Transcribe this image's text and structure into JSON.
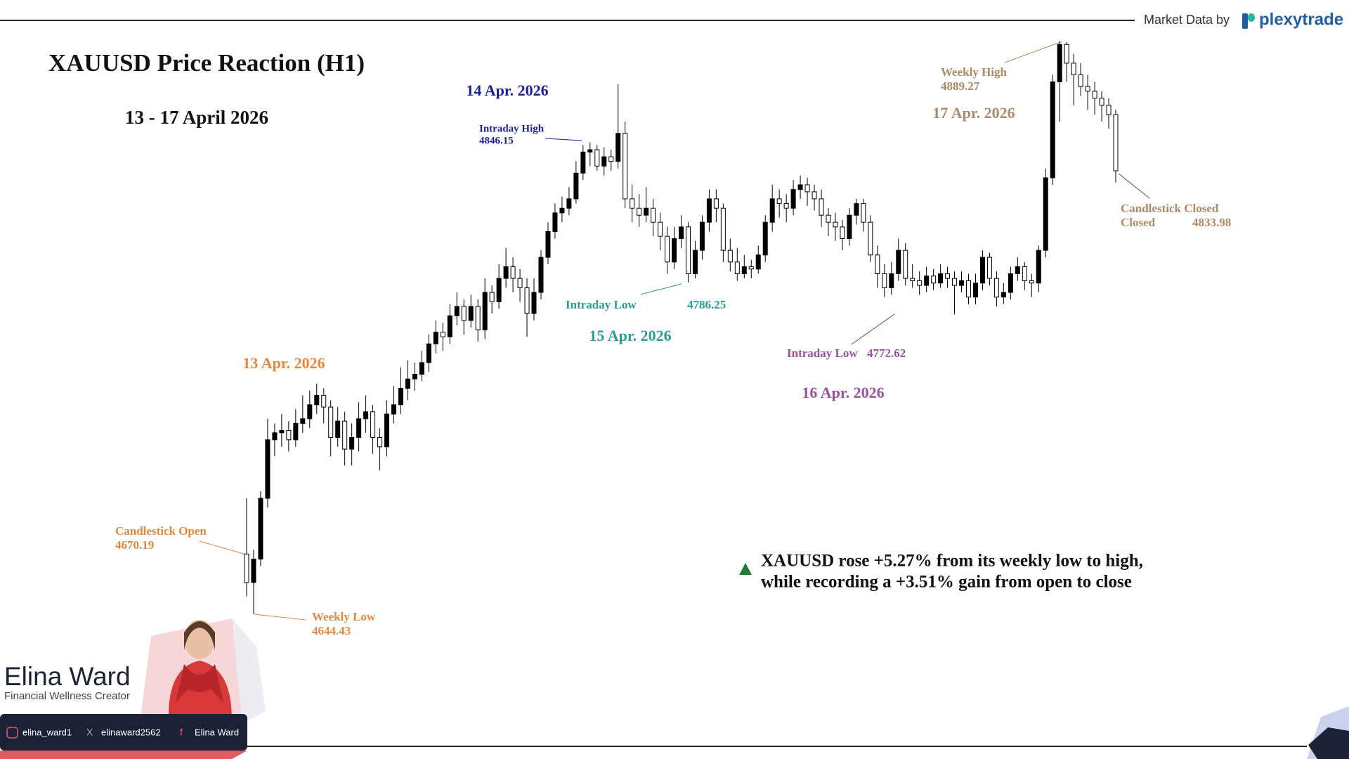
{
  "chart_data": {
    "type": "candlestick",
    "title": "XAUUSD Price Reaction (H1)",
    "subtitle": "13 - 17 April 2026",
    "source_label": "Market Data by",
    "source_brand": "plexytrade",
    "day_labels": [
      "13 Apr. 2026",
      "14 Apr. 2026",
      "15 Apr. 2026",
      "16 Apr. 2026",
      "17 Apr. 2026"
    ],
    "annotations": [
      {
        "label": "Candlestick Open",
        "value": 4670.19
      },
      {
        "label": "Weekly Low",
        "value": 4644.43
      },
      {
        "label": "Intraday High",
        "value": 4846.15
      },
      {
        "label": "Intraday Low",
        "value": 4786.25
      },
      {
        "label": "Intraday Low",
        "value": 4772.62
      },
      {
        "label": "Weekly High",
        "value": 4889.27
      },
      {
        "label": "Candlestick Closed",
        "value": 4833.98
      }
    ],
    "note": [
      "XAUUSD rose +5.27% from its weekly low to high,",
      "while recording a +3.51% gain from open to close"
    ],
    "up_color": "#000000",
    "down_color": "#ffffff",
    "open": [
      4670.19,
      4658,
      4668,
      4694,
      4719,
      4722,
      4723,
      4719,
      4726,
      4728,
      4734,
      4738,
      4733,
      4720,
      4727,
      4715,
      4720,
      4728,
      4731,
      4720,
      4716,
      4730,
      4734,
      4741,
      4745,
      4747,
      4752,
      4760,
      4765,
      4763,
      4772,
      4776,
      4770,
      4776,
      4766,
      4782,
      4778,
      4788,
      4793,
      4788,
      4784,
      4773,
      4782,
      4797,
      4808,
      4816,
      4818,
      4822,
      4833,
      4842,
      4843,
      4836,
      4840,
      4838,
      4850,
      4822,
      4818,
      4815,
      4818,
      4812,
      4806,
      4795,
      4805,
      4810,
      4790,
      4800,
      4812,
      4822,
      4818,
      4800,
      4795,
      4790,
      4793,
      4792,
      4798,
      4812,
      4822,
      4820,
      4818,
      4826,
      4828,
      4825,
      4822,
      4815,
      4812,
      4810,
      4805,
      4815,
      4820,
      4812,
      4798,
      4790,
      4784,
      4790,
      4800,
      4788,
      4787,
      4785,
      4789,
      4786,
      4790,
      4788,
      4785,
      4787,
      4780,
      4786,
      4797,
      4788,
      4780,
      4782,
      4790,
      4793,
      4787,
      4786,
      4800,
      4831,
      4872,
      4888,
      4880,
      4875,
      4870,
      4868,
      4865,
      4862,
      4858
    ],
    "high": [
      4694,
      4672,
      4697,
      4728,
      4726,
      4730,
      4727,
      4732,
      4738,
      4740,
      4743,
      4741,
      4736,
      4733,
      4731,
      4726,
      4735,
      4738,
      4734,
      4724,
      4736,
      4742,
      4750,
      4753,
      4752,
      4757,
      4764,
      4770,
      4769,
      4777,
      4782,
      4779,
      4781,
      4779,
      4788,
      4785,
      4794,
      4801,
      4797,
      4792,
      4788,
      4788,
      4800,
      4812,
      4820,
      4823,
      4827,
      4838,
      4845,
      4846.15,
      4845,
      4844,
      4843,
      4871,
      4855,
      4828,
      4824,
      4827,
      4822,
      4816,
      4810,
      4810,
      4815,
      4812,
      4804,
      4815,
      4826,
      4826,
      4820,
      4805,
      4801,
      4798,
      4796,
      4802,
      4815,
      4828,
      4826,
      4824,
      4830,
      4832,
      4831,
      4828,
      4826,
      4818,
      4816,
      4813,
      4818,
      4822,
      4822,
      4815,
      4802,
      4794,
      4795,
      4805,
      4803,
      4794,
      4791,
      4793,
      4792,
      4794,
      4793,
      4791,
      4791,
      4790,
      4790,
      4800,
      4799,
      4791,
      4786,
      4793,
      4797,
      4795,
      4790,
      4802,
      4835,
      4875,
      4889.27,
      4889,
      4884,
      4880,
      4875,
      4872,
      4868,
      4865,
      4860
    ],
    "low": [
      4652,
      4644.43,
      4665,
      4690,
      4712,
      4716,
      4714,
      4716,
      4722,
      4724,
      4730,
      4726,
      4712,
      4716,
      4708,
      4708,
      4714,
      4722,
      4713,
      4706,
      4712,
      4726,
      4730,
      4736,
      4740,
      4744,
      4748,
      4756,
      4757,
      4760,
      4768,
      4764,
      4767,
      4761,
      4762,
      4773,
      4775,
      4784,
      4782,
      4778,
      4763,
      4770,
      4779,
      4794,
      4805,
      4812,
      4815,
      4820,
      4830,
      4836,
      4834,
      4832,
      4834,
      4835,
      4818,
      4812,
      4810,
      4812,
      4806,
      4800,
      4790,
      4792,
      4801,
      4786.25,
      4788,
      4796,
      4808,
      4812,
      4795,
      4791,
      4787,
      4788,
      4788,
      4790,
      4795,
      4808,
      4814,
      4812,
      4815,
      4822,
      4819,
      4817,
      4810,
      4806,
      4804,
      4800,
      4802,
      4811,
      4808,
      4795,
      4784,
      4780,
      4781,
      4787,
      4785,
      4784,
      4781,
      4782,
      4783,
      4784,
      4784,
      4772.62,
      4782,
      4777,
      4777,
      4783,
      4785,
      4776,
      4777,
      4779,
      4787,
      4783,
      4780,
      4782,
      4797,
      4828,
      4855,
      4872,
      4862,
      4866,
      4860,
      4858,
      4855,
      4852,
      4829
    ],
    "close": [
      4658,
      4668,
      4694,
      4719,
      4722,
      4723,
      4719,
      4726,
      4728,
      4734,
      4738,
      4733,
      4720,
      4727,
      4715,
      4720,
      4728,
      4731,
      4720,
      4716,
      4730,
      4734,
      4741,
      4745,
      4747,
      4752,
      4760,
      4765,
      4763,
      4772,
      4776,
      4770,
      4776,
      4766,
      4782,
      4778,
      4788,
      4793,
      4788,
      4784,
      4773,
      4782,
      4797,
      4808,
      4816,
      4818,
      4822,
      4833,
      4842,
      4843,
      4836,
      4840,
      4838,
      4850,
      4822,
      4818,
      4815,
      4818,
      4812,
      4806,
      4795,
      4805,
      4810,
      4790,
      4800,
      4812,
      4822,
      4818,
      4800,
      4795,
      4790,
      4793,
      4792,
      4798,
      4812,
      4822,
      4820,
      4818,
      4826,
      4828,
      4825,
      4822,
      4815,
      4812,
      4810,
      4805,
      4815,
      4820,
      4812,
      4798,
      4790,
      4784,
      4790,
      4800,
      4788,
      4787,
      4785,
      4789,
      4786,
      4790,
      4788,
      4785,
      4787,
      4780,
      4786,
      4797,
      4788,
      4780,
      4782,
      4790,
      4793,
      4787,
      4786,
      4800,
      4831,
      4872,
      4888,
      4880,
      4875,
      4870,
      4868,
      4865,
      4862,
      4858,
      4833.98
    ]
  },
  "branding": {
    "name": "Elina Ward",
    "role": "Financial Wellness Creator",
    "instagram": "elina_ward1",
    "x": "elinaward2562",
    "facebook": "Elina Ward"
  }
}
